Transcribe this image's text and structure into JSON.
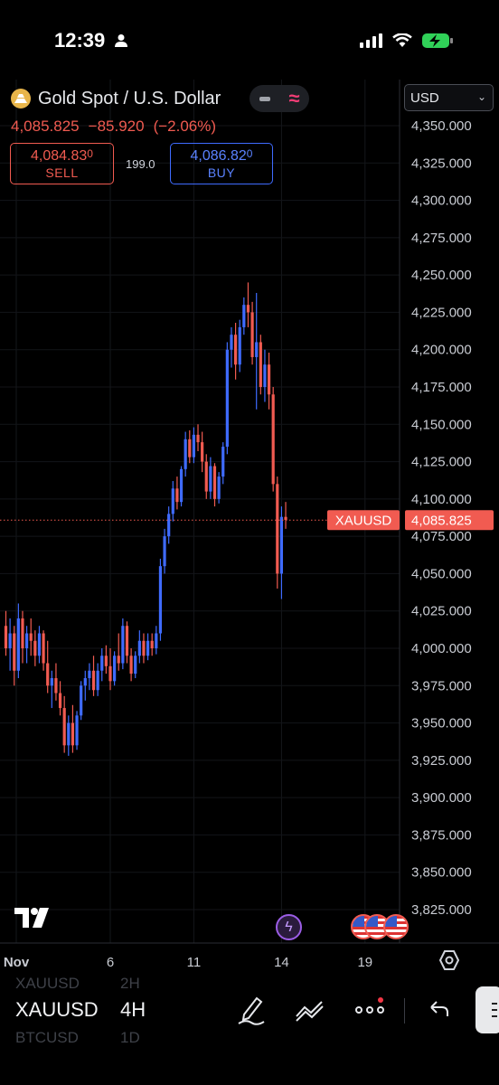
{
  "status": {
    "time": "12:39"
  },
  "header": {
    "symbol_title": "Gold Spot / U.S. Dollar",
    "last_price": "4,085.825",
    "change": "−85.920",
    "change_pct": "(−2.06%)",
    "sell": {
      "price_main": "4,084.83",
      "price_sup": "0",
      "label": "SELL"
    },
    "buy": {
      "price_main": "4,086.82",
      "price_sup": "0",
      "label": "BUY"
    },
    "spread": "199.0",
    "currency": "USD"
  },
  "chart_data": {
    "type": "candlestick",
    "symbol_label": "XAUUSD",
    "current_price": 4085.825,
    "current_price_label": "4,085.825",
    "y_ticks": [
      4350,
      4325,
      4300,
      4275,
      4250,
      4225,
      4200,
      4175,
      4150,
      4125,
      4100,
      4075,
      4050,
      4025,
      4000,
      3975,
      3950,
      3925,
      3900,
      3875,
      3850,
      3825
    ],
    "y_tick_labels": [
      "4,350.000",
      "4,325.000",
      "4,300.000",
      "4,275.000",
      "4,250.000",
      "4,225.000",
      "4,200.000",
      "4,175.000",
      "4,150.000",
      "4,125.000",
      "4,100.000",
      "4,075.000",
      "4,050.000",
      "4,025.000",
      "4,000.000",
      "3,975.000",
      "3,950.000",
      "3,925.000",
      "3,900.000",
      "3,875.000",
      "3,850.000",
      "3,825.000"
    ],
    "x_ticks": [
      {
        "label": "Nov",
        "index": -1
      },
      {
        "label": "6",
        "index": 25
      },
      {
        "label": "11",
        "index": 45
      },
      {
        "label": "14",
        "index": 66
      },
      {
        "label": "19",
        "index": 86
      }
    ],
    "colors": {
      "up": "#3f6bff",
      "down": "#f15b51"
    },
    "candles": [
      [
        4015,
        4025,
        3995,
        4000
      ],
      [
        4000,
        4020,
        3985,
        4010
      ],
      [
        4010,
        4015,
        3975,
        3985
      ],
      [
        3985,
        4030,
        3980,
        4020
      ],
      [
        4020,
        4025,
        3990,
        4000
      ],
      [
        4000,
        4015,
        3990,
        4010
      ],
      [
        4010,
        4020,
        3995,
        4005
      ],
      [
        4005,
        4012,
        3988,
        3995
      ],
      [
        3995,
        4015,
        3990,
        4010
      ],
      [
        4010,
        4012,
        3985,
        3990
      ],
      [
        3990,
        4005,
        3970,
        3975
      ],
      [
        3975,
        3985,
        3960,
        3980
      ],
      [
        3980,
        3990,
        3965,
        3970
      ],
      [
        3970,
        3978,
        3955,
        3960
      ],
      [
        3960,
        3968,
        3930,
        3935
      ],
      [
        3935,
        3955,
        3928,
        3950
      ],
      [
        3950,
        3962,
        3930,
        3935
      ],
      [
        3935,
        3958,
        3932,
        3955
      ],
      [
        3955,
        3978,
        3952,
        3975
      ],
      [
        3975,
        3985,
        3965,
        3980
      ],
      [
        3980,
        3990,
        3972,
        3985
      ],
      [
        3985,
        3995,
        3968,
        3972
      ],
      [
        3972,
        3990,
        3968,
        3985
      ],
      [
        3985,
        4000,
        3978,
        3995
      ],
      [
        3995,
        4002,
        3983,
        3988
      ],
      [
        3988,
        4000,
        3972,
        3978
      ],
      [
        3978,
        3998,
        3975,
        3995
      ],
      [
        3995,
        4010,
        3985,
        3990
      ],
      [
        3990,
        4020,
        3986,
        4015
      ],
      [
        4015,
        4018,
        3990,
        3995
      ],
      [
        3995,
        4000,
        3978,
        3983
      ],
      [
        3983,
        3998,
        3980,
        3995
      ],
      [
        3995,
        4012,
        3990,
        4005
      ],
      [
        4005,
        4010,
        3990,
        3995
      ],
      [
        3995,
        4010,
        3992,
        4005
      ],
      [
        4005,
        4010,
        3995,
        4000
      ],
      [
        4000,
        4015,
        3996,
        4010
      ],
      [
        4010,
        4060,
        4005,
        4055
      ],
      [
        4055,
        4080,
        4050,
        4075
      ],
      [
        4075,
        4095,
        4070,
        4090
      ],
      [
        4090,
        4112,
        4085,
        4107
      ],
      [
        4107,
        4115,
        4093,
        4098
      ],
      [
        4098,
        4122,
        4095,
        4120
      ],
      [
        4120,
        4145,
        4115,
        4140
      ],
      [
        4140,
        4146,
        4124,
        4128
      ],
      [
        4128,
        4148,
        4124,
        4143
      ],
      [
        4143,
        4150,
        4132,
        4138
      ],
      [
        4138,
        4145,
        4118,
        4125
      ],
      [
        4125,
        4130,
        4100,
        4105
      ],
      [
        4105,
        4128,
        4100,
        4122
      ],
      [
        4122,
        4124,
        4095,
        4100
      ],
      [
        4100,
        4118,
        4097,
        4115
      ],
      [
        4115,
        4138,
        4110,
        4135
      ],
      [
        4135,
        4205,
        4130,
        4200
      ],
      [
        4200,
        4215,
        4188,
        4210
      ],
      [
        4210,
        4218,
        4180,
        4190
      ],
      [
        4190,
        4220,
        4185,
        4215
      ],
      [
        4215,
        4235,
        4210,
        4230
      ],
      [
        4230,
        4245,
        4215,
        4225
      ],
      [
        4225,
        4232,
        4190,
        4195
      ],
      [
        4195,
        4238,
        4160,
        4205
      ],
      [
        4205,
        4210,
        4170,
        4175
      ],
      [
        4175,
        4200,
        4165,
        4190
      ],
      [
        4190,
        4198,
        4160,
        4170
      ],
      [
        4170,
        4175,
        4105,
        4110
      ],
      [
        4110,
        4115,
        4040,
        4050
      ],
      [
        4050,
        4095,
        4033,
        4088
      ],
      [
        4088,
        4098,
        4080,
        4086
      ]
    ]
  },
  "toolbar": {
    "symbol": "XAUUSD",
    "timeframe": "4H",
    "ghost_symbol_above": "XAUUSD",
    "ghost_tf_above": "2H",
    "ghost_symbol_below": "BTCUSD",
    "ghost_tf_below": "1D"
  }
}
